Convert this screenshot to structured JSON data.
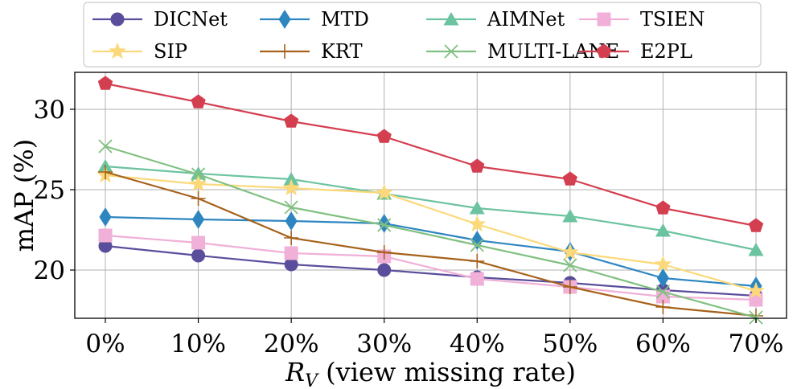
{
  "chart_data": {
    "type": "line",
    "title": "",
    "xlabel_symbol": "R",
    "xlabel_subscript": "V",
    "xlabel_rest": " (view missing rate)",
    "ylabel": "mAP (%)",
    "categories": [
      "0%",
      "10%",
      "20%",
      "30%",
      "40%",
      "50%",
      "60%",
      "70%"
    ],
    "ylim": [
      17,
      32.3
    ],
    "yticks": [
      20,
      25,
      30
    ],
    "ytick_labels": [
      "20",
      "25",
      "30"
    ],
    "grid": true,
    "legend_position": "top",
    "series": [
      {
        "name": "DICNet",
        "color": "#5a4e9c",
        "marker": "circle",
        "values": [
          21.5,
          20.9,
          20.35,
          20.0,
          19.55,
          19.2,
          18.75,
          18.4
        ]
      },
      {
        "name": "MTD",
        "color": "#2e86c1",
        "marker": "thin_diamond",
        "values": [
          23.3,
          23.15,
          23.05,
          22.9,
          21.85,
          21.15,
          19.5,
          19.0
        ]
      },
      {
        "name": "AIMNet",
        "color": "#6cc3a0",
        "marker": "triangle",
        "values": [
          26.45,
          26.0,
          25.65,
          24.75,
          23.85,
          23.35,
          22.45,
          21.25
        ]
      },
      {
        "name": "TSIEN",
        "color": "#f0b0d8",
        "marker": "square",
        "values": [
          22.15,
          21.7,
          21.05,
          20.85,
          19.45,
          18.95,
          18.35,
          18.15
        ]
      },
      {
        "name": "SIP",
        "color": "#fbd97a",
        "marker": "star",
        "values": [
          25.9,
          25.35,
          25.1,
          24.8,
          22.85,
          21.1,
          20.35,
          18.7
        ]
      },
      {
        "name": "KRT",
        "color": "#a6611a",
        "marker": "plus",
        "values": [
          26.1,
          24.45,
          22.0,
          21.1,
          20.55,
          18.95,
          17.7,
          17.15
        ]
      },
      {
        "name": "MULTI-LANE",
        "color": "#80c080",
        "marker": "x",
        "values": [
          27.7,
          25.95,
          23.9,
          22.8,
          21.55,
          20.3,
          18.65,
          17.05
        ]
      },
      {
        "name": "E2PL",
        "color": "#d43f50",
        "marker": "pentagon",
        "values": [
          31.6,
          30.45,
          29.25,
          28.3,
          26.45,
          25.65,
          23.85,
          22.75
        ]
      }
    ]
  }
}
